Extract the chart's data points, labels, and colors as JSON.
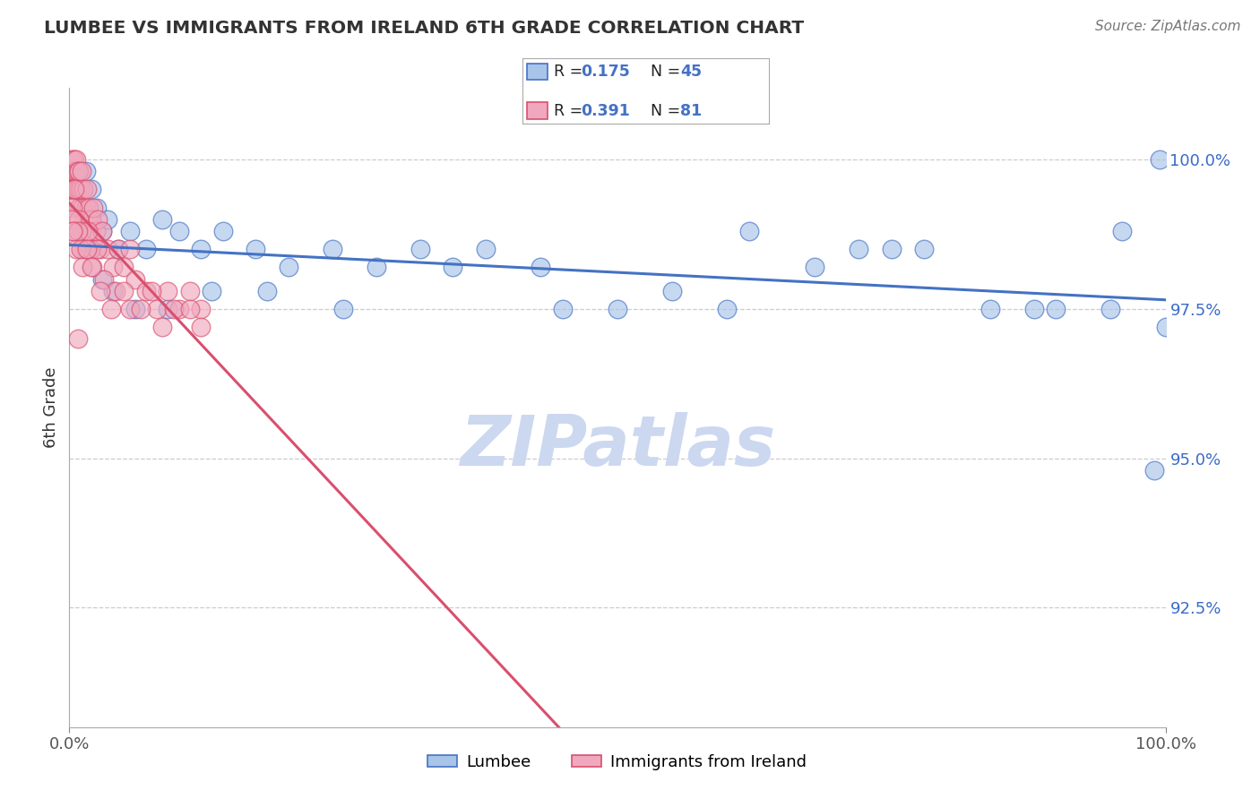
{
  "title": "LUMBEE VS IMMIGRANTS FROM IRELAND 6TH GRADE CORRELATION CHART",
  "source_text": "Source: ZipAtlas.com",
  "ylabel": "6th Grade",
  "yticks": [
    92.5,
    95.0,
    97.5,
    100.0
  ],
  "ytick_labels": [
    "92.5%",
    "95.0%",
    "97.5%",
    "100.0%"
  ],
  "xlim": [
    0.0,
    100.0
  ],
  "ylim": [
    90.5,
    101.2
  ],
  "lumbee_color": "#a8c4e8",
  "ireland_color": "#f0a8be",
  "trend_lumbee_color": "#4472c4",
  "trend_ireland_color": "#d94f6e",
  "watermark_color": "#ccd8f0",
  "background_color": "#ffffff",
  "lumbee_x": [
    1.5,
    2.0,
    2.5,
    3.0,
    3.5,
    4.5,
    5.5,
    7.0,
    8.5,
    10.0,
    12.0,
    14.0,
    17.0,
    20.0,
    24.0,
    28.0,
    32.0,
    38.0,
    43.0,
    50.0,
    55.0,
    60.0,
    68.0,
    72.0,
    78.0,
    84.0,
    90.0,
    96.0,
    99.5,
    2.0,
    3.0,
    4.0,
    6.0,
    9.0,
    13.0,
    18.0,
    25.0,
    35.0,
    45.0,
    62.0,
    75.0,
    88.0,
    95.0,
    99.0,
    100.0
  ],
  "lumbee_y": [
    99.8,
    99.5,
    99.2,
    98.8,
    99.0,
    98.5,
    98.8,
    98.5,
    99.0,
    98.8,
    98.5,
    98.8,
    98.5,
    98.2,
    98.5,
    98.2,
    98.5,
    98.5,
    98.2,
    97.5,
    97.8,
    97.5,
    98.2,
    98.5,
    98.5,
    97.5,
    97.5,
    98.8,
    100.0,
    98.5,
    98.0,
    97.8,
    97.5,
    97.5,
    97.8,
    97.8,
    97.5,
    98.2,
    97.5,
    98.8,
    98.5,
    97.5,
    97.5,
    94.8,
    97.2
  ],
  "ireland_x": [
    0.1,
    0.15,
    0.2,
    0.25,
    0.3,
    0.35,
    0.4,
    0.45,
    0.5,
    0.55,
    0.6,
    0.65,
    0.7,
    0.75,
    0.8,
    0.85,
    0.9,
    0.95,
    1.0,
    1.1,
    1.2,
    1.3,
    1.4,
    1.5,
    1.6,
    1.7,
    1.8,
    1.9,
    2.0,
    2.2,
    2.4,
    2.6,
    2.8,
    3.0,
    3.5,
    4.0,
    4.5,
    5.0,
    5.5,
    6.0,
    7.0,
    8.0,
    9.0,
    10.0,
    11.0,
    12.0,
    0.3,
    0.5,
    0.7,
    0.9,
    1.1,
    1.3,
    1.5,
    1.7,
    1.9,
    2.1,
    2.5,
    3.2,
    4.2,
    5.5,
    7.5,
    9.5,
    12.0,
    0.2,
    0.4,
    0.6,
    0.8,
    1.0,
    1.2,
    1.6,
    2.0,
    2.8,
    3.8,
    5.0,
    6.5,
    8.5,
    11.0,
    0.3,
    0.8
  ],
  "ireland_y": [
    99.5,
    99.8,
    100.0,
    99.5,
    99.8,
    100.0,
    99.5,
    99.8,
    100.0,
    99.5,
    99.8,
    100.0,
    99.5,
    99.2,
    99.8,
    99.5,
    99.8,
    99.2,
    99.5,
    99.8,
    99.2,
    99.5,
    99.0,
    99.2,
    99.5,
    99.0,
    99.2,
    98.8,
    99.0,
    99.2,
    98.8,
    99.0,
    98.5,
    98.8,
    98.5,
    98.2,
    98.5,
    98.2,
    98.5,
    98.0,
    97.8,
    97.5,
    97.8,
    97.5,
    97.8,
    97.5,
    99.2,
    99.5,
    98.8,
    99.0,
    98.8,
    98.5,
    98.5,
    98.8,
    98.5,
    98.2,
    98.5,
    98.0,
    97.8,
    97.5,
    97.8,
    97.5,
    97.2,
    99.0,
    98.8,
    98.5,
    98.8,
    98.5,
    98.2,
    98.5,
    98.2,
    97.8,
    97.5,
    97.8,
    97.5,
    97.2,
    97.5,
    98.8,
    97.0
  ]
}
